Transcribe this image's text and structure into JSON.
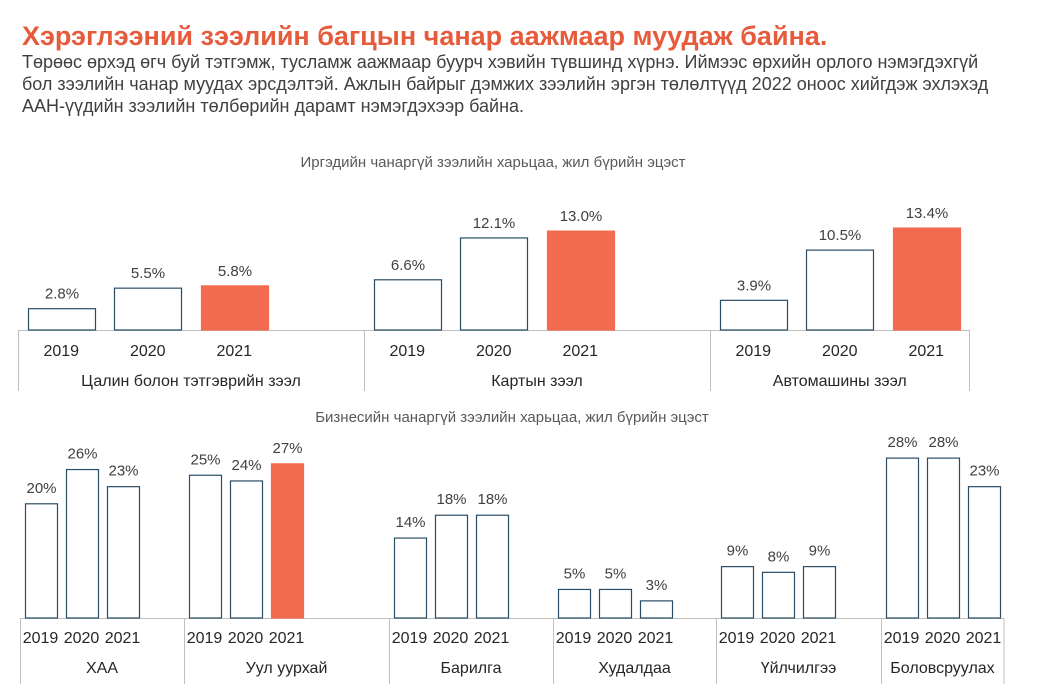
{
  "header": {
    "title": "Хэрэглээний зээлийн багцын чанар аажмаар муудаж байна.",
    "subtitle_lines": [
      "Төрөөс өрхэд өгч буй тэтгэмж, тусламж аажмаар буурч хэвийн түвшинд хүрнэ. Иймээс өрхийн орлого нэмэгдэхгүй",
      "бол зээлийн чанар муудах эрсдэлтэй. Ажлын байрыг дэмжих зээлийн эргэн төлөлтүүд 2022 оноос хийгдэж эхлэхэд",
      "ААН-үүдийн зээлийн төлбөрийн дарамт нэмэгдэхээр байна."
    ]
  },
  "colors": {
    "title": "#E55B3C",
    "highlight_bar": "#F26B50",
    "bar_outline": "#2A4D66",
    "axis": "#BFBFBF"
  },
  "chart_data": [
    {
      "type": "bar",
      "title": "Иргэдийн чанаргүй зээлийн харьцаа, жил бүрийн эцэст",
      "x": [
        "2019",
        "2020",
        "2021"
      ],
      "ylim": [
        0,
        14
      ],
      "groups": [
        {
          "name": "Цалин болон тэтгэврийн зээл",
          "values": [
            2.8,
            5.5,
            5.8
          ],
          "labels": [
            "2.8%",
            "5.5%",
            "5.8%"
          ],
          "highlight": [
            false,
            false,
            true
          ]
        },
        {
          "name": "Картын зээл",
          "values": [
            6.6,
            12.1,
            13.0
          ],
          "labels": [
            "6.6%",
            "12.1%",
            "13.0%"
          ],
          "highlight": [
            false,
            false,
            true
          ]
        },
        {
          "name": "Автомашины зээл",
          "values": [
            3.9,
            10.5,
            13.4
          ],
          "labels": [
            "3.9%",
            "10.5%",
            "13.4%"
          ],
          "highlight": [
            false,
            false,
            true
          ]
        }
      ]
    },
    {
      "type": "bar",
      "title": "Бизнесийн чанаргүй зээлийн харьцаа, жил бүрийн эцэст",
      "x": [
        "2019",
        "2020",
        "2021"
      ],
      "ylim": [
        0,
        30
      ],
      "groups": [
        {
          "name": "ХАА",
          "values": [
            20,
            26,
            23
          ],
          "labels": [
            "20%",
            "26%",
            "23%"
          ],
          "highlight": [
            false,
            false,
            false
          ]
        },
        {
          "name": "Уул уурхай",
          "values": [
            25,
            24,
            27
          ],
          "labels": [
            "25%",
            "24%",
            "27%"
          ],
          "highlight": [
            false,
            false,
            true
          ]
        },
        {
          "name": "Барилга",
          "values": [
            14,
            18,
            18
          ],
          "labels": [
            "14%",
            "18%",
            "18%"
          ],
          "highlight": [
            false,
            false,
            false
          ]
        },
        {
          "name": "Худалдаа",
          "values": [
            5,
            5,
            3
          ],
          "labels": [
            "5%",
            "5%",
            "3%"
          ],
          "highlight": [
            false,
            false,
            false
          ]
        },
        {
          "name": "Үйлчилгээ",
          "values": [
            9,
            8,
            9
          ],
          "labels": [
            "9%",
            "8%",
            "9%"
          ],
          "highlight": [
            false,
            false,
            false
          ]
        },
        {
          "name": "Боловсруулах",
          "values": [
            28,
            28,
            23
          ],
          "labels": [
            "28%",
            "28%",
            "23%"
          ],
          "highlight": [
            false,
            false,
            false
          ]
        }
      ]
    }
  ]
}
